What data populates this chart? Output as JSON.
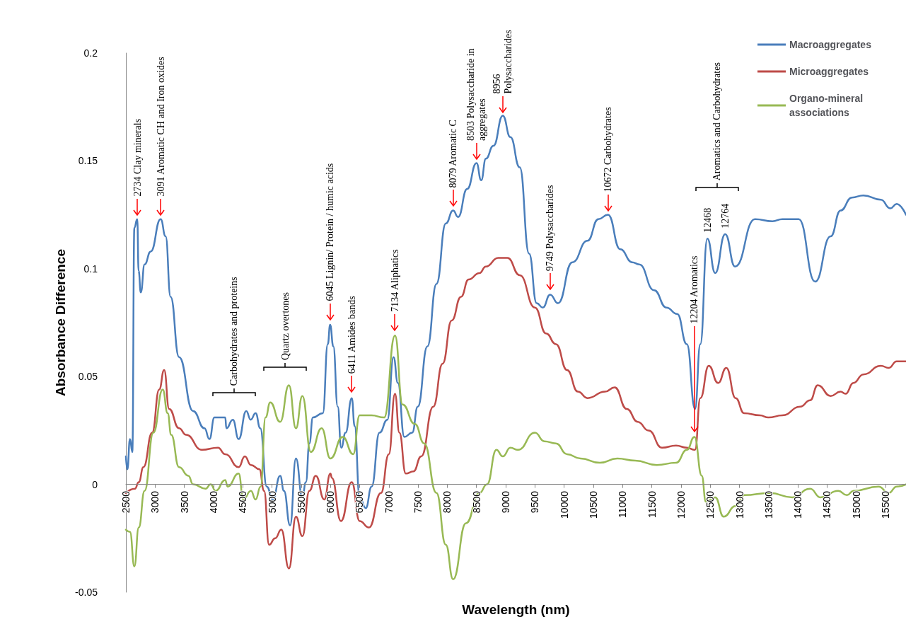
{
  "chart_data": {
    "type": "line",
    "xlabel": "Wavelength (nm)",
    "ylabel": "Absorbance Difference",
    "xlim": [
      2500,
      15850
    ],
    "xticks": [
      2500,
      3000,
      3500,
      4000,
      4500,
      5000,
      5500,
      6000,
      6500,
      7000,
      7500,
      8000,
      8500,
      9000,
      9500,
      10000,
      10500,
      11000,
      11500,
      12000,
      12500,
      13000,
      13500,
      14000,
      14500,
      15000,
      15500
    ],
    "ylim": [
      -0.05,
      0.2
    ],
    "yticks": [
      -0.05,
      0,
      0.05,
      0.1,
      0.15,
      0.2
    ],
    "legend": "top right",
    "marker": "none",
    "line_style": "solid",
    "grid": false,
    "series": [
      {
        "name": "Macroaggregates",
        "color": "#4a7ebb",
        "x": [
          2500,
          2525,
          2570,
          2610,
          2645,
          2694,
          2718,
          2755,
          2820,
          2925,
          3095,
          3180,
          3265,
          3410,
          3650,
          3845,
          3930,
          4015,
          4200,
          4220,
          4330,
          4430,
          4560,
          4635,
          4720,
          4800,
          4910,
          5015,
          5140,
          5205,
          5310,
          5410,
          5520,
          5580,
          5640,
          5700,
          5870,
          5955,
          5995,
          6050,
          6125,
          6185,
          6260,
          6365,
          6415,
          6500,
          6605,
          6705,
          6840,
          6975,
          7080,
          7155,
          7265,
          7400,
          7495,
          7660,
          7815,
          7975,
          8100,
          8185,
          8340,
          8500,
          8580,
          8660,
          8790,
          8950,
          9080,
          9240,
          9400,
          9530,
          9635,
          9760,
          9895,
          10140,
          10400,
          10585,
          10750,
          10960,
          11165,
          11285,
          11540,
          11750,
          11935,
          12100,
          12240,
          12330,
          12450,
          12585,
          12755,
          12925,
          13265,
          13565,
          13735,
          14015,
          14295,
          14560,
          14730,
          14925,
          15120,
          15420,
          15580,
          15690,
          15850
        ],
        "values": [
          0.013,
          0.007,
          0.021,
          0.015,
          0.119,
          0.123,
          0.099,
          0.089,
          0.102,
          0.108,
          0.123,
          0.115,
          0.087,
          0.059,
          0.034,
          0.026,
          0.021,
          0.031,
          0.031,
          0.026,
          0.03,
          0.021,
          0.034,
          0.03,
          0.033,
          0.026,
          -0.001,
          -0.007,
          0.004,
          -0.003,
          -0.019,
          0.012,
          -0.006,
          0.001,
          0.019,
          0.031,
          0.033,
          0.065,
          0.074,
          0.064,
          0.036,
          0.017,
          0.024,
          0.04,
          0.027,
          -0.006,
          -0.011,
          -0.001,
          0.024,
          0.03,
          0.059,
          0.047,
          0.022,
          0.024,
          0.036,
          0.064,
          0.093,
          0.121,
          0.127,
          0.124,
          0.137,
          0.149,
          0.141,
          0.151,
          0.157,
          0.171,
          0.161,
          0.147,
          0.107,
          0.084,
          0.082,
          0.088,
          0.084,
          0.103,
          0.113,
          0.123,
          0.125,
          0.109,
          0.103,
          0.102,
          0.09,
          0.082,
          0.079,
          0.065,
          0.035,
          0.065,
          0.114,
          0.098,
          0.116,
          0.101,
          0.123,
          0.122,
          0.123,
          0.123,
          0.094,
          0.115,
          0.127,
          0.133,
          0.134,
          0.132,
          0.128,
          0.13,
          0.125
        ]
      },
      {
        "name": "Microaggregates",
        "color": "#be4b48",
        "x": [
          2500,
          2655,
          2720,
          2800,
          2950,
          3070,
          3155,
          3240,
          3410,
          3530,
          3800,
          4075,
          4200,
          4430,
          4535,
          4640,
          4785,
          4865,
          4950,
          5055,
          5160,
          5290,
          5410,
          5520,
          5640,
          5750,
          5895,
          6000,
          6025,
          6180,
          6365,
          6500,
          6660,
          6865,
          7000,
          7105,
          7180,
          7290,
          7420,
          7555,
          7760,
          7920,
          8075,
          8235,
          8365,
          8550,
          8660,
          8870,
          9030,
          9240,
          9500,
          9690,
          9860,
          10050,
          10235,
          10400,
          10700,
          10865,
          11070,
          11260,
          11445,
          11675,
          11915,
          12100,
          12240,
          12330,
          12475,
          12635,
          12775,
          12935,
          13080,
          13350,
          13495,
          13735,
          14040,
          14210,
          14340,
          14560,
          14730,
          14815,
          14950,
          15120,
          15420,
          15555,
          15690,
          15850
        ],
        "values": [
          -0.004,
          -0.002,
          0.001,
          0.008,
          0.024,
          0.044,
          0.053,
          0.035,
          0.026,
          0.023,
          0.016,
          0.017,
          0.014,
          0.008,
          0.013,
          0.009,
          0.007,
          -0.003,
          -0.028,
          -0.025,
          -0.021,
          -0.039,
          -0.015,
          -0.024,
          -0.003,
          0.004,
          -0.007,
          0.005,
          0.003,
          -0.017,
          0.001,
          -0.017,
          -0.02,
          -0.004,
          0.014,
          0.042,
          0.024,
          0.005,
          0.006,
          0.013,
          0.036,
          0.056,
          0.076,
          0.087,
          0.095,
          0.098,
          0.101,
          0.105,
          0.105,
          0.097,
          0.082,
          0.07,
          0.065,
          0.053,
          0.043,
          0.04,
          0.043,
          0.045,
          0.035,
          0.029,
          0.025,
          0.017,
          0.018,
          0.017,
          0.016,
          0.04,
          0.055,
          0.047,
          0.054,
          0.04,
          0.033,
          0.032,
          0.031,
          0.032,
          0.036,
          0.039,
          0.046,
          0.041,
          0.043,
          0.042,
          0.047,
          0.051,
          0.055,
          0.054,
          0.057,
          0.057
        ]
      },
      {
        "name": "Organo-mineral associations",
        "color": "#98b954",
        "x": [
          2500,
          2570,
          2645,
          2720,
          2820,
          2970,
          3130,
          3215,
          3275,
          3410,
          3570,
          3650,
          3865,
          3950,
          4035,
          4200,
          4240,
          4430,
          4510,
          4640,
          4720,
          4805,
          4890,
          4970,
          5140,
          5290,
          5410,
          5520,
          5665,
          5850,
          6000,
          6210,
          6390,
          6500,
          6705,
          6920,
          7105,
          7235,
          7445,
          7605,
          7815,
          7975,
          8100,
          8320,
          8550,
          8680,
          8840,
          8950,
          9080,
          9210,
          9500,
          9660,
          9860,
          10050,
          10280,
          10610,
          10910,
          11215,
          11585,
          11915,
          12100,
          12230,
          12355,
          12425,
          12585,
          12730,
          12935,
          13080,
          13520,
          13905,
          14210,
          14385,
          14690,
          14840,
          14950,
          15380,
          15555,
          15690,
          15850
        ],
        "values": [
          -0.021,
          -0.022,
          -0.038,
          -0.02,
          -0.003,
          0.024,
          0.044,
          0.033,
          0.023,
          0.008,
          0.004,
          0,
          -0.002,
          0,
          -0.003,
          0.002,
          -0.001,
          0.005,
          -0.007,
          -0.003,
          -0.007,
          -0.001,
          0.031,
          0.038,
          0.029,
          0.046,
          0.026,
          0.041,
          0.015,
          0.026,
          0.012,
          0.022,
          0.014,
          0.032,
          0.032,
          0.031,
          0.069,
          0.037,
          0.028,
          0.019,
          -0.004,
          -0.028,
          -0.044,
          -0.018,
          -0.004,
          0,
          0.016,
          0.013,
          0.017,
          0.016,
          0.024,
          0.02,
          0.019,
          0.014,
          0.012,
          0.01,
          0.012,
          0.011,
          0.009,
          0.01,
          0.016,
          0.022,
          0.004,
          -0.008,
          -0.006,
          -0.015,
          -0.01,
          -0.005,
          -0.004,
          -0.006,
          -0.002,
          -0.006,
          -0.003,
          -0.005,
          -0.003,
          -0.001,
          -0.004,
          -0.001,
          0
        ]
      }
    ],
    "annotations": [
      {
        "text": "2734 Clay minerals",
        "x": 2694,
        "y": 0.123
      },
      {
        "text": "3091 Aromatic CH and Iron oxides",
        "x": 3095,
        "y": 0.123
      },
      "Carbohydrates and proteins",
      "Quartz overtones",
      {
        "text": "6045 Lignin/ Protein / humic acids",
        "x": 5995,
        "y": 0.074
      },
      {
        "text": "6411 Amides bands",
        "x": 6365,
        "y": 0.04
      },
      {
        "text": "7134 Aliphatics",
        "x": 7105,
        "y": 0.069
      },
      {
        "text": "8079 Aromatic C",
        "x": 8100,
        "y": 0.127
      },
      {
        "text": "8503 Polysaccharide in aggregates",
        "x": 8500,
        "y": 0.149
      },
      {
        "text": "8956 Polysaccharides",
        "x": 8950,
        "y": 0.171
      },
      {
        "text": "9749 Polysaccharides",
        "x": 9760,
        "y": 0.088
      },
      {
        "text": "10672 Carbohydrates",
        "x": 10750,
        "y": 0.125
      },
      {
        "text": "12204 Aromatics",
        "x": 12230,
        "y": 0.022
      },
      {
        "text": "12468",
        "x": 12450,
        "y": 0.114
      },
      {
        "text": "12764",
        "x": 12755,
        "y": 0.116
      },
      "Aromatics and Carbohydrates"
    ]
  }
}
